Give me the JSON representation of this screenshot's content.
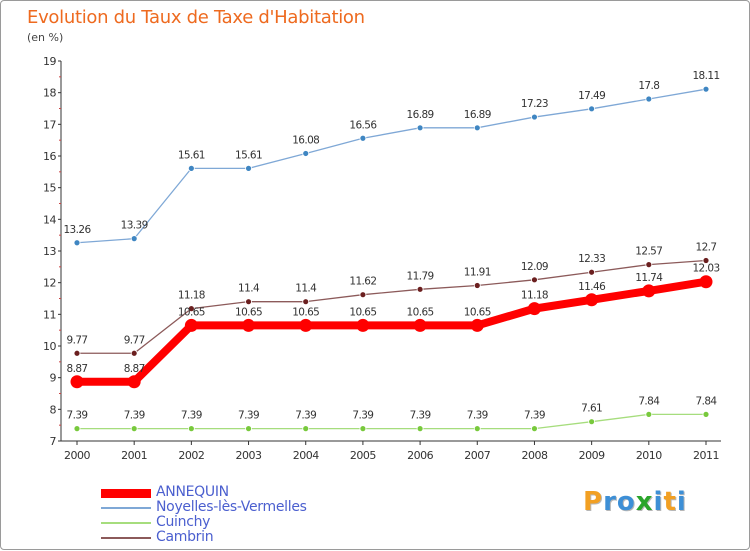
{
  "title": "Evolution du Taux de Taxe d'Habitation",
  "unit": "(en %)",
  "logo": {
    "letters": [
      "P",
      "r",
      "o",
      "x",
      "i",
      "t",
      "i"
    ],
    "colors": [
      "#f2a023",
      "#3d8fd6",
      "#3d8fd6",
      "#2aa52a",
      "#3d8fd6",
      "#f2a023",
      "#3d8fd6"
    ]
  },
  "colors": {
    "title": "#ee6a1f",
    "axis": "#333333",
    "grid": "#e2e2e2",
    "legend_text": "#4b5fcf"
  },
  "chart_data": {
    "type": "line",
    "x": [
      "2000",
      "2001",
      "2002",
      "2003",
      "2004",
      "2005",
      "2006",
      "2007",
      "2008",
      "2009",
      "2010",
      "2011"
    ],
    "ylim": [
      7,
      19
    ],
    "yticks": [
      "7",
      "8",
      "9",
      "10",
      "11",
      "12",
      "13",
      "14",
      "15",
      "16",
      "17",
      "18",
      "19"
    ],
    "grid": false,
    "legend_position": "bottom-left",
    "series": [
      {
        "name": "ANNEQUIN",
        "color": "#ff0000",
        "point_color": "#ff0000",
        "labels": [
          "8.87",
          "8.87",
          "10.65",
          "10.65",
          "10.65",
          "10.65",
          "10.65",
          "10.65",
          "11.18",
          "11.46",
          "11.74",
          "12.03"
        ],
        "values": [
          8.87,
          8.87,
          10.65,
          10.65,
          10.65,
          10.65,
          10.65,
          10.65,
          11.18,
          11.46,
          11.74,
          12.03
        ],
        "emphasis": true
      },
      {
        "name": "Noyelles-lès-Vermelles",
        "color": "#7fa8d6",
        "point_color": "#3f86c2",
        "labels": [
          "13.26",
          "13.39",
          "15.61",
          "15.61",
          "16.08",
          "16.56",
          "16.89",
          "16.89",
          "17.23",
          "17.49",
          "17.8",
          "18.11"
        ],
        "values": [
          13.26,
          13.39,
          15.61,
          15.61,
          16.08,
          16.56,
          16.89,
          16.89,
          17.23,
          17.49,
          17.8,
          18.11
        ]
      },
      {
        "name": "Cuinchy",
        "color": "#a6dd7d",
        "point_color": "#78c93c",
        "labels": [
          "7.39",
          "7.39",
          "7.39",
          "7.39",
          "7.39",
          "7.39",
          "7.39",
          "7.39",
          "7.39",
          "7.61",
          "7.84",
          "7.84"
        ],
        "values": [
          7.39,
          7.39,
          7.39,
          7.39,
          7.39,
          7.39,
          7.39,
          7.39,
          7.39,
          7.61,
          7.84,
          7.84
        ]
      },
      {
        "name": "Cambrin",
        "color": "#8c5a5a",
        "point_color": "#6b1f1f",
        "labels": [
          "9.77",
          "9.77",
          "11.18",
          "11.4",
          "11.4",
          "11.62",
          "11.79",
          "11.91",
          "12.09",
          "12.33",
          "12.57",
          "12.7"
        ],
        "values": [
          9.77,
          9.77,
          11.18,
          11.4,
          11.4,
          11.62,
          11.79,
          11.91,
          12.09,
          12.33,
          12.57,
          12.7
        ]
      }
    ]
  }
}
